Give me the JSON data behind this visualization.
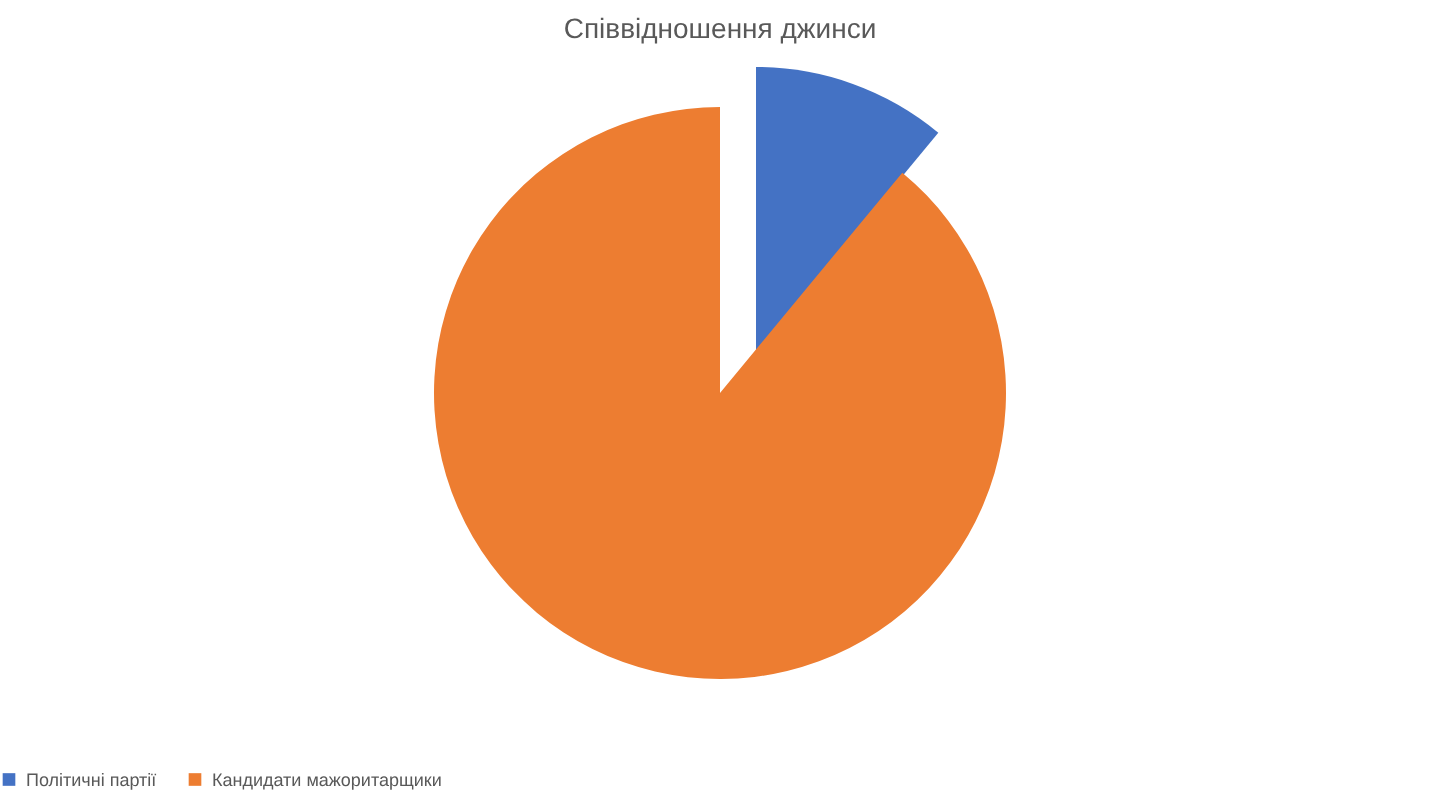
{
  "chart_data": {
    "type": "pie",
    "title": "Співвідношення джинси",
    "categories": [
      "Політичні партії",
      "Кандидати мажоритарщики"
    ],
    "values": [
      11,
      89
    ],
    "colors": [
      "#4472c4",
      "#ed7d31"
    ],
    "legend": "bottom"
  }
}
